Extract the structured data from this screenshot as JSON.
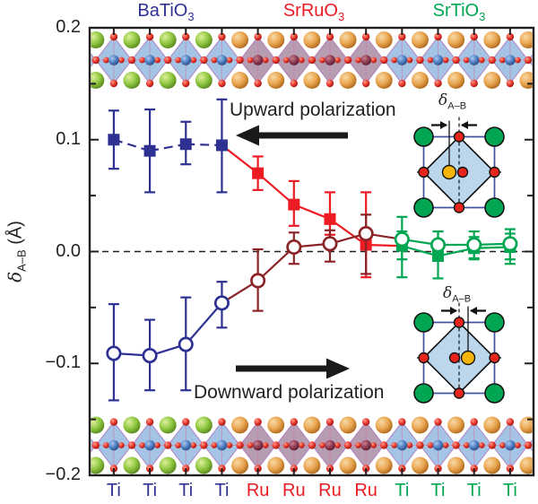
{
  "figure": {
    "top_labels": [
      {
        "text": "BaTiO",
        "sub": "3",
        "color": "#2e3192"
      },
      {
        "text": "SrRuO",
        "sub": "3",
        "color": "#ed1c24"
      },
      {
        "text": "SrTiO",
        "sub": "3",
        "color": "#00a651"
      }
    ],
    "y_axis": {
      "title_main": "δ",
      "title_sub": "A–B",
      "title_unit": " (Å)",
      "ticks": [
        {
          "value": 0.2,
          "label": "0.2"
        },
        {
          "value": 0.1,
          "label": "0.1"
        },
        {
          "value": 0.0,
          "label": "0.0"
        },
        {
          "value": -0.1,
          "label": "−0.1"
        },
        {
          "value": -0.2,
          "label": "−0.2"
        }
      ]
    },
    "x_labels": [
      {
        "label": "Ti",
        "color": "#2e3192"
      },
      {
        "label": "Ti",
        "color": "#2e3192"
      },
      {
        "label": "Ti",
        "color": "#2e3192"
      },
      {
        "label": "Ti",
        "color": "#2e3192"
      },
      {
        "label": "Ru",
        "color": "#ed1c24"
      },
      {
        "label": "Ru",
        "color": "#ed1c24"
      },
      {
        "label": "Ru",
        "color": "#ed1c24"
      },
      {
        "label": "Ru",
        "color": "#ed1c24"
      },
      {
        "label": "Ti",
        "color": "#00a651"
      },
      {
        "label": "Ti",
        "color": "#00a651"
      },
      {
        "label": "Ti",
        "color": "#00a651"
      },
      {
        "label": "Ti",
        "color": "#00a651"
      }
    ],
    "annotations": {
      "upward": "Upward polarization",
      "downward": "Downward polarization"
    },
    "inset_delta": {
      "main": "δ",
      "sub": "A–B"
    }
  },
  "chart_data": {
    "type": "scatter",
    "title": "B-site off-centering across BaTiO3 / SrRuO3 / SrTiO3 superlattice",
    "ylabel": "δ A–B (Å)",
    "ylim": [
      -0.2,
      0.2
    ],
    "y_major_ticks": [
      0.2,
      0.1,
      0.0,
      -0.1,
      -0.2
    ],
    "y_minor_ticks": [
      0.15,
      0.05,
      -0.05,
      -0.15
    ],
    "zero_line": 0.0,
    "x_site_labels": [
      "Ti",
      "Ti",
      "Ti",
      "Ti",
      "Ru",
      "Ru",
      "Ru",
      "Ru",
      "Ti",
      "Ti",
      "Ti",
      "Ti"
    ],
    "regions": [
      {
        "label": "BaTiO3",
        "color": "#2e3192",
        "point_range": [
          0,
          3
        ]
      },
      {
        "label": "SrRuO3",
        "color": "#ed1c24",
        "point_range": [
          4,
          7
        ]
      },
      {
        "label": "SrTiO3",
        "color": "#00a651",
        "point_range": [
          8,
          11
        ]
      }
    ],
    "series": [
      {
        "name": "Upward polarization",
        "marker": "filled-square",
        "values": [
          0.1,
          0.09,
          0.096,
          0.095,
          0.07,
          0.042,
          0.029,
          0.006,
          0.005,
          -0.004,
          0.003,
          0.004
        ],
        "err_plus": [
          0.026,
          0.037,
          0.02,
          0.041,
          0.015,
          0.021,
          0.024,
          0.047,
          0.013,
          0.022,
          0.01,
          0.012
        ],
        "err_minus": [
          0.026,
          0.037,
          0.018,
          0.042,
          0.015,
          0.019,
          0.014,
          0.029,
          0.012,
          0.02,
          0.01,
          0.015
        ],
        "point_colors": [
          "#2e3192",
          "#2e3192",
          "#2e3192",
          "#2e3192",
          "#ed1c24",
          "#ed1c24",
          "#ed1c24",
          "#ed1c24",
          "#00a651",
          "#00a651",
          "#00a651",
          "#00a651"
        ],
        "segment_colors": [
          "#2e3192",
          "#2e3192",
          "#2e3192",
          "#ed1c24",
          "#ed1c24",
          "#ed1c24",
          "#ed1c24",
          "#ed1c24",
          "#00a651",
          "#00a651",
          "#00a651"
        ],
        "segment_dashed": [
          true,
          true,
          true,
          false,
          false,
          false,
          false,
          false,
          false,
          false,
          false
        ]
      },
      {
        "name": "Downward polarization",
        "marker": "open-circle",
        "values": [
          -0.091,
          -0.093,
          -0.083,
          -0.046,
          -0.026,
          0.004,
          0.007,
          0.016,
          0.011,
          0.006,
          0.006,
          0.007
        ],
        "err_plus": [
          0.044,
          0.032,
          0.042,
          0.019,
          0.028,
          0.013,
          0.012,
          0.017,
          0.02,
          0.012,
          0.012,
          0.013
        ],
        "err_minus": [
          0.042,
          0.031,
          0.041,
          0.022,
          0.027,
          0.015,
          0.016,
          0.036,
          0.034,
          0.012,
          0.012,
          0.014
        ],
        "point_colors": [
          "#2e3192",
          "#2e3192",
          "#2e3192",
          "#2e3192",
          "#8b2427",
          "#8b2427",
          "#8b2427",
          "#8b2427",
          "#00a651",
          "#00a651",
          "#00a651",
          "#00a651"
        ],
        "segment_colors": [
          "#2e3192",
          "#2e3192",
          "#2e3192",
          "#8b2427",
          "#8b2427",
          "#8b2427",
          "#8b2427",
          "#8b2427",
          "#00a651",
          "#00a651",
          "#00a651"
        ],
        "segment_dashed": [
          false,
          false,
          false,
          false,
          false,
          false,
          false,
          false,
          false,
          false,
          false
        ]
      }
    ]
  },
  "crystal_strips": {
    "a_site_colors_by_region": [
      "#8dc63f",
      "#e8a44e",
      "#e8a44e"
    ],
    "b_site_colors_by_region": [
      "#4f7ec2",
      "#8e3b52",
      "#4f7ec2"
    ],
    "octahedron_fills": [
      "rgba(148,184,224,0.85)",
      "rgba(170,140,164,0.85)",
      "rgba(148,184,224,0.85)"
    ],
    "oxygen_color": "#e8342a"
  },
  "insets": {
    "a_color": "#00a651",
    "o_color": "#e8251d",
    "b_color": "#f5b50a",
    "cell_color": "#3f51a3",
    "octahedron_fill": "#bcd6ec"
  },
  "arrow_color": "#1a1a1a"
}
